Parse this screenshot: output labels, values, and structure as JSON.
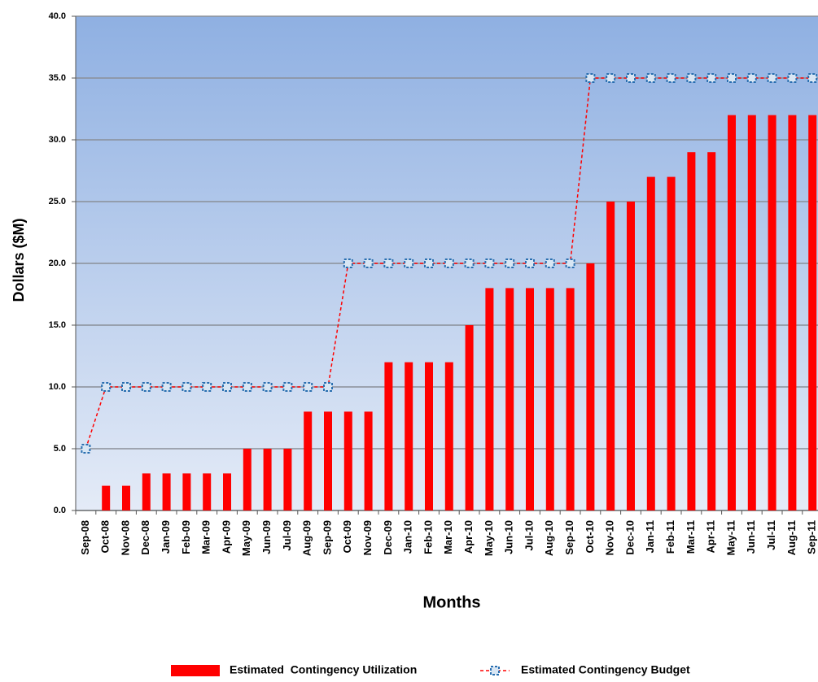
{
  "chart_data": {
    "type": "bar_line",
    "x_label": "Months",
    "y_label": "Dollars ($M)",
    "categories": [
      "Sep-08",
      "Oct-08",
      "Nov-08",
      "Dec-08",
      "Jan-09",
      "Feb-09",
      "Mar-09",
      "Apr-09",
      "May-09",
      "Jun-09",
      "Jul-09",
      "Aug-09",
      "Sep-09",
      "Oct-09",
      "Nov-09",
      "Dec-09",
      "Jan-10",
      "Feb-10",
      "Mar-10",
      "Apr-10",
      "May-10",
      "Jun-10",
      "Jul-10",
      "Aug-10",
      "Sep-10",
      "Oct-10",
      "Nov-10",
      "Dec-10",
      "Jan-11",
      "Feb-11",
      "Mar-11",
      "Apr-11",
      "May-11",
      "Jun-11",
      "Jul-11",
      "Aug-11",
      "Sep-11"
    ],
    "series": [
      {
        "name": "Estimated  Contingency Utilization",
        "type": "bar",
        "color": "#ff0000",
        "values": [
          0,
          2,
          2,
          3,
          3,
          3,
          3,
          3,
          5,
          5,
          5,
          8,
          8,
          8,
          8,
          12,
          12,
          12,
          12,
          15,
          18,
          18,
          18,
          18,
          18,
          20,
          25,
          25,
          27,
          27,
          29,
          29,
          32,
          32,
          32,
          32,
          32
        ]
      },
      {
        "name": "Estimated Contingency Budget",
        "type": "line",
        "color": "#ff0000",
        "values": [
          5,
          10,
          10,
          10,
          10,
          10,
          10,
          10,
          10,
          10,
          10,
          10,
          10,
          20,
          20,
          20,
          20,
          20,
          20,
          20,
          20,
          20,
          20,
          20,
          20,
          35,
          35,
          35,
          35,
          35,
          35,
          35,
          35,
          35,
          35,
          35,
          35
        ]
      }
    ],
    "ylim": [
      0,
      40
    ],
    "yticks": [
      {
        "value": 0,
        "label": "0.0"
      },
      {
        "value": 5,
        "label": "5.0"
      },
      {
        "value": 10,
        "label": "10.0"
      },
      {
        "value": 15,
        "label": "15.0"
      },
      {
        "value": 20,
        "label": "20.0"
      },
      {
        "value": 25,
        "label": "25.0"
      },
      {
        "value": 30,
        "label": "30.0"
      },
      {
        "value": 35,
        "label": "35.0"
      },
      {
        "value": 40,
        "label": "40.0"
      }
    ],
    "grid": true
  }
}
